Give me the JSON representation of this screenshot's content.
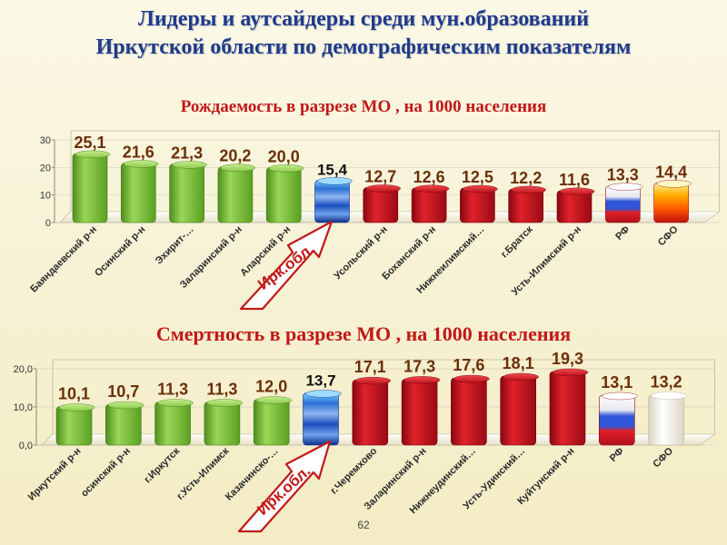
{
  "title_lines": [
    "Лидеры и аутсайдеры среди мун.образований",
    "Иркутской области по демографическим показателям"
  ],
  "callout_label": "Ирк.обл.",
  "page_number": "62",
  "colors": {
    "green": "#6fb62e",
    "red": "#c9101c",
    "title": "#1f3a8a",
    "subtitle": "#c21818"
  },
  "chart_data": [
    {
      "type": "bar",
      "title": "Рождаемость в разрезе МО , на 1000 населения",
      "categories": [
        "Баяндаевский р-н",
        "Осинский р-н",
        "Эхирит-…",
        "Заларинский р-н",
        "Аларский р-н",
        "Ирк.обл.",
        "Усольский р-н",
        "Боханский р-н",
        "Нижнеилимский…",
        "г.Братск",
        "Усть-Илимский р-н",
        "РФ",
        "СФО"
      ],
      "tick_labels": [
        "Баяндаевский р-н",
        "Осинский р-н",
        "Эхирит-…",
        "Заларинский р-н",
        "Аларский р-н",
        "",
        "Усольский р-н",
        "Боханский р-н",
        "Нижнеилимский…",
        "г.Братск",
        "Усть-Илимский р-н",
        "РФ",
        "СФО"
      ],
      "values": [
        25.1,
        21.6,
        21.3,
        20.2,
        20.0,
        15.4,
        12.7,
        12.6,
        12.5,
        12.2,
        11.6,
        13.3,
        14.4
      ],
      "labels": [
        "25,1",
        "21,6",
        "21,3",
        "20,2",
        "20,0",
        "15,4",
        "12,7",
        "12,6",
        "12,5",
        "12,2",
        "11,6",
        "13,3",
        "14,4"
      ],
      "styles": [
        "green",
        "green",
        "green",
        "green",
        "green",
        "region",
        "red",
        "red",
        "red",
        "red",
        "red",
        "flag",
        "sfo"
      ],
      "yticks": [
        "0",
        "10",
        "20",
        "30"
      ],
      "ylim": [
        0,
        30
      ],
      "highlight": "Ирк.обл."
    },
    {
      "type": "bar",
      "title": "Смертность в разрезе МО , на 1000 населения",
      "categories": [
        "Иркутский р-н",
        "осинский р-н",
        "г.Иркутск",
        "г.Усть-Илимск",
        "Казачинско-…",
        "Ирк.обл.",
        "г.Черемхово",
        "Заларинский р-н",
        "Нижнеудинский…",
        "Усть-Удинский…",
        "Куйтунский р-н",
        "РФ",
        "СФО"
      ],
      "tick_labels": [
        "Иркутский р-н",
        "осинский р-н",
        "г.Иркутск",
        "г.Усть-Илимск",
        "Казачинско-…",
        "",
        "г.Черемхово",
        "Заларинский р-н",
        "Нижнеудинский…",
        "Усть-Удинский…",
        "Куйтунский р-н",
        "РФ",
        "СФО"
      ],
      "values": [
        10.1,
        10.7,
        11.3,
        11.3,
        12.0,
        13.7,
        17.1,
        17.3,
        17.6,
        18.1,
        19.3,
        13.1,
        13.2
      ],
      "labels": [
        "10,1",
        "10,7",
        "11,3",
        "11,3",
        "12,0",
        "13,7",
        "17,1",
        "17,3",
        "17,6",
        "18,1",
        "19,3",
        "13,1",
        "13,2"
      ],
      "styles": [
        "green",
        "green",
        "green",
        "green",
        "green",
        "region",
        "red",
        "red",
        "red",
        "red",
        "red",
        "flag",
        "white"
      ],
      "yticks": [
        "0,0",
        "10,0",
        "20,0"
      ],
      "ylim": [
        0,
        20
      ],
      "highlight": "Ирк.обл."
    }
  ]
}
